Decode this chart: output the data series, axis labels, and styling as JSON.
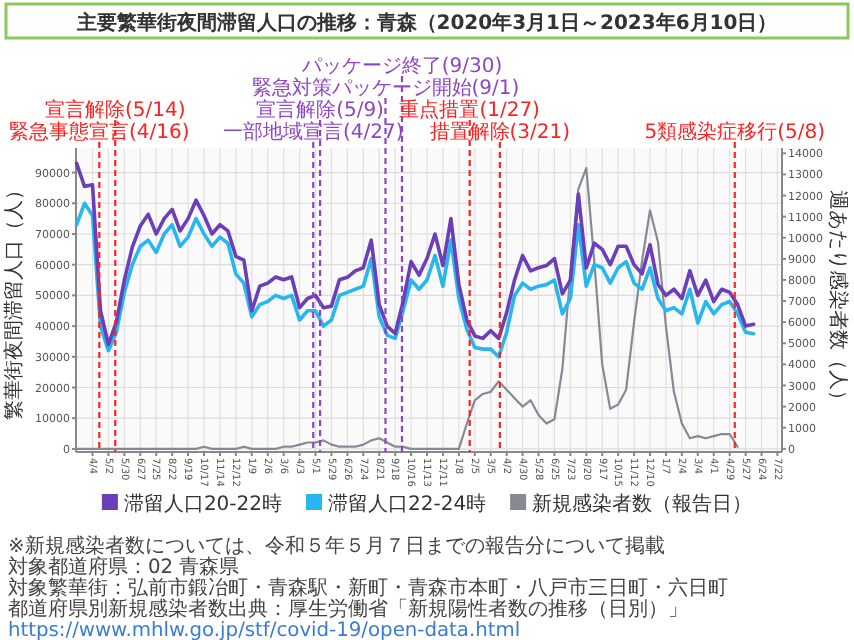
{
  "chart_data": {
    "type": "line",
    "title": "主要繁華街夜間滞留人口の推移：青森（2020年3月1日～2023年6月10日）",
    "ylabel": "繁華街夜間滞留人口（人）",
    "y2label": "週あたり感染者数（人）",
    "x": [
      "2020-03-07",
      "2020-03-21",
      "2020-04-04",
      "2020-04-18",
      "2020-05-02",
      "2020-05-16",
      "2020-05-30",
      "2020-06-13",
      "2020-06-27",
      "2020-07-11",
      "2020-07-25",
      "2020-08-08",
      "2020-08-22",
      "2020-09-05",
      "2020-09-19",
      "2020-10-03",
      "2020-10-17",
      "2020-10-31",
      "2020-11-14",
      "2020-11-28",
      "2020-12-12",
      "2020-12-26",
      "2021-01-09",
      "2021-01-23",
      "2021-02-06",
      "2021-02-20",
      "2021-03-06",
      "2021-03-20",
      "2021-04-03",
      "2021-04-17",
      "2021-05-01",
      "2021-05-15",
      "2021-05-29",
      "2021-06-12",
      "2021-06-26",
      "2021-07-10",
      "2021-07-24",
      "2021-08-07",
      "2021-08-21",
      "2021-09-04",
      "2021-09-18",
      "2021-10-02",
      "2021-10-16",
      "2021-10-30",
      "2021-11-13",
      "2021-11-27",
      "2021-12-11",
      "2021-12-25",
      "2022-01-08",
      "2022-01-22",
      "2022-02-05",
      "2022-02-19",
      "2022-03-05",
      "2022-03-19",
      "2022-04-02",
      "2022-04-16",
      "2022-04-30",
      "2022-05-14",
      "2022-05-28",
      "2022-06-11",
      "2022-06-25",
      "2022-07-09",
      "2022-07-23",
      "2022-08-06",
      "2022-08-20",
      "2022-09-03",
      "2022-09-17",
      "2022-10-01",
      "2022-10-15",
      "2022-10-29",
      "2022-11-12",
      "2022-11-26",
      "2022-12-10",
      "2022-12-24",
      "2023-01-07",
      "2023-01-21",
      "2023-02-04",
      "2023-02-18",
      "2023-03-04",
      "2023-03-18",
      "2023-04-01",
      "2023-04-15",
      "2023-04-29",
      "2023-05-13",
      "2023-05-27",
      "2023-06-10"
    ],
    "series": [
      {
        "name": "滞留人口20-22時",
        "color": "#6a3fb8",
        "values": [
          93000,
          85500,
          86000,
          45000,
          34000,
          41400,
          55000,
          65700,
          72600,
          76400,
          70000,
          75000,
          78000,
          71000,
          75000,
          81000,
          76000,
          70000,
          73000,
          71000,
          62700,
          61500,
          45000,
          53000,
          54000,
          56000,
          55100,
          56000,
          46000,
          49000,
          50000,
          46000,
          46500,
          55100,
          55900,
          58000,
          59000,
          68000,
          47000,
          40000,
          37600,
          48000,
          61000,
          56600,
          62000,
          70000,
          59700,
          75000,
          53600,
          42000,
          36800,
          36000,
          38500,
          36000,
          44400,
          55100,
          63000,
          58000,
          59000,
          59700,
          62000,
          50500,
          55000,
          83000,
          58900,
          67000,
          65000,
          60000,
          66000,
          66000,
          60000,
          57000,
          66500,
          53600,
          50000,
          52000,
          49000,
          58000,
          50000,
          55000,
          48000,
          52000,
          51000,
          47000,
          40000,
          40600
        ]
      },
      {
        "name": "滞留人口22-24時",
        "color": "#29b6f0",
        "values": [
          73000,
          80000,
          76000,
          40000,
          32000,
          38000,
          51000,
          60000,
          66000,
          68000,
          64000,
          70000,
          73000,
          66000,
          69000,
          75000,
          70000,
          66000,
          69000,
          67000,
          57000,
          54000,
          43000,
          47000,
          48000,
          50000,
          49000,
          50000,
          42000,
          45000,
          45000,
          40000,
          42000,
          50000,
          51000,
          52000,
          53000,
          62000,
          43000,
          37000,
          36000,
          45000,
          55000,
          52000,
          55000,
          63000,
          53000,
          68000,
          49000,
          39000,
          33000,
          32500,
          32500,
          30000,
          38000,
          50000,
          54000,
          52000,
          53000,
          53500,
          55000,
          44000,
          49000,
          73000,
          53000,
          60000,
          59000,
          54000,
          59000,
          61000,
          54000,
          52000,
          59000,
          49000,
          45000,
          46000,
          44000,
          52000,
          41000,
          48000,
          44000,
          47000,
          48000,
          44000,
          38000,
          37500
        ]
      },
      {
        "name": "新規感染者数（報告日）",
        "color": "#858b96",
        "axis": "y2",
        "values": [
          0,
          0,
          0,
          0,
          0,
          0,
          0,
          0,
          0,
          0,
          0,
          0,
          0,
          0,
          0,
          0,
          100,
          0,
          0,
          0,
          0,
          100,
          0,
          0,
          0,
          0,
          100,
          100,
          200,
          300,
          300,
          400,
          200,
          100,
          100,
          100,
          200,
          400,
          500,
          300,
          100,
          100,
          0,
          0,
          0,
          0,
          0,
          0,
          0,
          1200,
          2300,
          2600,
          2700,
          3200,
          2800,
          2400,
          2000,
          2300,
          1600,
          1200,
          1400,
          3800,
          8300,
          12300,
          13300,
          8900,
          4000,
          1900,
          2100,
          2800,
          6000,
          8900,
          11300,
          9800,
          5800,
          2700,
          1200,
          500,
          600,
          500,
          600,
          700,
          700,
          100,
          null,
          null
        ]
      }
    ],
    "xlim": [
      "2020-03-06",
      "2023-07-30"
    ],
    "xticks": [
      {
        "value": "2020-04-04",
        "label": "4/4"
      },
      {
        "value": "2020-05-02",
        "label": "5/2"
      },
      {
        "value": "2020-05-30",
        "label": "5/30"
      },
      {
        "value": "2020-06-27",
        "label": "6/27"
      },
      {
        "value": "2020-07-25",
        "label": "7/25"
      },
      {
        "value": "2020-08-22",
        "label": "8/22"
      },
      {
        "value": "2020-09-19",
        "label": "9/19"
      },
      {
        "value": "2020-10-17",
        "label": "10/17"
      },
      {
        "value": "2020-11-14",
        "label": "11/14"
      },
      {
        "value": "2020-12-12",
        "label": "12/12"
      },
      {
        "value": "2021-01-09",
        "label": "1/9"
      },
      {
        "value": "2021-02-06",
        "label": "2/6"
      },
      {
        "value": "2021-03-06",
        "label": "3/6"
      },
      {
        "value": "2021-04-03",
        "label": "4/3"
      },
      {
        "value": "2021-05-01",
        "label": "5/1"
      },
      {
        "value": "2021-05-29",
        "label": "5/29"
      },
      {
        "value": "2021-06-26",
        "label": "6/26"
      },
      {
        "value": "2021-07-24",
        "label": "7/24"
      },
      {
        "value": "2021-08-21",
        "label": "8/21"
      },
      {
        "value": "2021-09-18",
        "label": "9/18"
      },
      {
        "value": "2021-10-16",
        "label": "10/16"
      },
      {
        "value": "2021-11-13",
        "label": "11/13"
      },
      {
        "value": "2021-12-11",
        "label": "12/11"
      },
      {
        "value": "2022-01-08",
        "label": "1/8"
      },
      {
        "value": "2022-02-05",
        "label": "2/5"
      },
      {
        "value": "2022-03-05",
        "label": "3/5"
      },
      {
        "value": "2022-04-02",
        "label": "4/2"
      },
      {
        "value": "2022-04-30",
        "label": "4/30"
      },
      {
        "value": "2022-05-28",
        "label": "5/28"
      },
      {
        "value": "2022-06-25",
        "label": "6/25"
      },
      {
        "value": "2022-07-23",
        "label": "7/23"
      },
      {
        "value": "2022-08-20",
        "label": "8/20"
      },
      {
        "value": "2022-09-17",
        "label": "9/17"
      },
      {
        "value": "2022-10-15",
        "label": "10/15"
      },
      {
        "value": "2022-11-12",
        "label": "11/12"
      },
      {
        "value": "2022-12-10",
        "label": "12/10"
      },
      {
        "value": "2023-01-07",
        "label": "1/7"
      },
      {
        "value": "2023-02-04",
        "label": "2/4"
      },
      {
        "value": "2023-03-04",
        "label": "3/4"
      },
      {
        "value": "2023-04-01",
        "label": "4/1"
      },
      {
        "value": "2023-04-29",
        "label": "4/29"
      },
      {
        "value": "2023-05-27",
        "label": "5/27"
      },
      {
        "value": "2023-06-24",
        "label": "6/24"
      },
      {
        "value": "2023-07-22",
        "label": "7/22"
      }
    ],
    "ylim": [
      -1000,
      98000
    ],
    "yticks": [
      0,
      10000,
      20000,
      30000,
      40000,
      50000,
      60000,
      70000,
      80000,
      90000
    ],
    "y2lim": [
      -150,
      14250
    ],
    "y2ticks": [
      0,
      1000,
      2000,
      3000,
      4000,
      5000,
      6000,
      7000,
      8000,
      9000,
      10000,
      11000,
      12000,
      13000,
      14000
    ],
    "ref_lines": [
      {
        "axis": "x",
        "value": "2020-04-16",
        "label": "緊急事態宣言(4/16)",
        "color": "#ff2020",
        "line_style": "dashed"
      },
      {
        "axis": "x",
        "value": "2020-05-14",
        "label": "宣言解除(5/14)",
        "color": "#ff2020",
        "line_style": "dashed"
      },
      {
        "axis": "x",
        "value": "2021-04-27",
        "label": "一部地域宣言(4/27)",
        "color": "#8e44c8",
        "line_style": "dashed"
      },
      {
        "axis": "x",
        "value": "2021-05-09",
        "label": "宣言解除(5/9)",
        "color": "#8e44c8",
        "line_style": "dashed"
      },
      {
        "axis": "x",
        "value": "2021-09-01",
        "label": "緊急対策パッケージ開始(9/1)",
        "color": "#8e44c8",
        "line_style": "dashed"
      },
      {
        "axis": "x",
        "value": "2021-09-30",
        "label": "パッケージ終了(9/30)",
        "color": "#8e44c8",
        "line_style": "dashed"
      },
      {
        "axis": "x",
        "value": "2022-01-27",
        "label": "重点措置(1/27)",
        "color": "#ff2020",
        "line_style": "dashed"
      },
      {
        "axis": "x",
        "value": "2022-03-21",
        "label": "措置解除(3/21)",
        "color": "#ff2020",
        "line_style": "dashed"
      },
      {
        "axis": "x",
        "value": "2023-05-08",
        "label": "5類感染症移行(5/8)",
        "color": "#ff2020",
        "line_style": "dashed"
      }
    ],
    "annotations": [
      "※新規感染者数については、令和５年５月７日までの報告分について掲載",
      "対象都道府県：02 青森県",
      "対象繁華街：弘前市鍛冶町・青森駅・新町・青森市本町・八戸市三日町・六日町",
      "都道府県別新規感染者数出典：厚生労働省「新規陽性者数の推移（日別）」 https://www.mhlw.go.jp/stf/covid-19/open-data.html"
    ],
    "grid": true,
    "legend": "bottom",
    "line_style": "solid",
    "marker": "none"
  }
}
